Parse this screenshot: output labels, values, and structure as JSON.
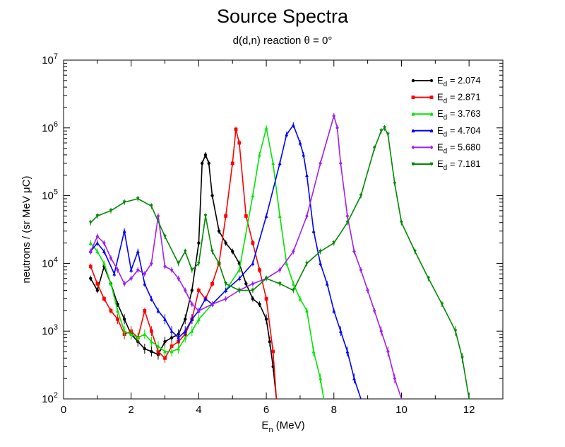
{
  "chart_data": {
    "type": "line",
    "title": "Source Spectra",
    "subtitle": "d(d,n) reaction θ = 0°",
    "xlabel": "E_n (MeV)",
    "ylabel": "neutrons / (sr MeV μC)",
    "xlim": [
      0,
      13
    ],
    "ylim": [
      100,
      10000000
    ],
    "yscale": "log",
    "x_ticks": [
      "0",
      "2",
      "4",
      "6",
      "8",
      "10",
      "12"
    ],
    "y_ticks": [
      "10^2",
      "10^3",
      "10^4",
      "10^5",
      "10^6",
      "10^7"
    ],
    "grid": false,
    "legend_position": "top-right",
    "series": [
      {
        "name": "E_d = 2.074",
        "color": "#000000",
        "marker": "circle",
        "x": [
          0.8,
          1.0,
          1.2,
          1.4,
          1.6,
          1.8,
          2.0,
          2.2,
          2.4,
          2.6,
          2.8,
          3.0,
          3.2,
          3.4,
          3.6,
          3.8,
          4.0,
          4.1,
          4.2,
          4.3,
          4.4,
          4.6,
          4.8,
          5.0,
          5.2,
          5.4,
          5.6,
          5.8,
          6.0,
          6.1,
          6.2,
          6.3
        ],
        "y": [
          6000,
          4000,
          9000,
          5000,
          2500,
          1500,
          900,
          700,
          550,
          500,
          450,
          700,
          800,
          900,
          1500,
          4000,
          20000,
          300000,
          400000,
          300000,
          100000,
          30000,
          20000,
          15000,
          10000,
          5000,
          3000,
          2500,
          1500,
          700,
          300,
          100
        ]
      },
      {
        "name": "E_d = 2.871",
        "color": "#ff0000",
        "marker": "square",
        "x": [
          0.8,
          1.0,
          1.2,
          1.4,
          1.6,
          1.8,
          2.0,
          2.2,
          2.4,
          2.6,
          2.8,
          3.0,
          3.2,
          3.4,
          3.6,
          3.8,
          4.0,
          4.2,
          4.4,
          4.6,
          4.8,
          5.0,
          5.1,
          5.2,
          5.4,
          5.6,
          5.8,
          6.0,
          6.2,
          6.3
        ],
        "y": [
          9000,
          5000,
          3000,
          2000,
          1500,
          900,
          1000,
          800,
          2000,
          1000,
          500,
          400,
          600,
          700,
          900,
          1500,
          4000,
          3000,
          5000,
          10000,
          50000,
          300000,
          950000,
          600000,
          50000,
          20000,
          8000,
          3000,
          500,
          100
        ]
      },
      {
        "name": "E_d = 3.763",
        "color": "#00e600",
        "marker": "triangle-up",
        "x": [
          0.8,
          1.0,
          1.2,
          1.4,
          1.6,
          1.8,
          2.0,
          2.2,
          2.4,
          2.6,
          2.8,
          3.0,
          3.2,
          3.4,
          3.6,
          3.8,
          4.0,
          4.4,
          4.8,
          5.2,
          5.6,
          5.8,
          6.0,
          6.2,
          6.4,
          6.6,
          6.8,
          7.0,
          7.2,
          7.4,
          7.6,
          7.7
        ],
        "y": [
          20000,
          15000,
          10000,
          5000,
          2000,
          1000,
          900,
          800,
          900,
          700,
          600,
          500,
          500,
          550,
          800,
          1000,
          1500,
          2500,
          4000,
          8000,
          100000,
          400000,
          1000000,
          300000,
          50000,
          10000,
          5000,
          3000,
          2000,
          500,
          200,
          100
        ]
      },
      {
        "name": "E_d = 4.704",
        "color": "#0000ff",
        "marker": "triangle-up",
        "x": [
          0.8,
          1.0,
          1.2,
          1.5,
          1.8,
          2.0,
          2.2,
          2.4,
          2.6,
          2.8,
          3.0,
          3.2,
          3.4,
          3.6,
          3.8,
          4.0,
          4.2,
          4.4,
          4.8,
          5.2,
          5.6,
          6.0,
          6.4,
          6.6,
          6.8,
          7.0,
          7.1,
          7.2,
          7.4,
          7.6,
          7.8,
          8.0,
          8.2,
          8.4,
          8.6,
          8.8
        ],
        "y": [
          15000,
          20000,
          15000,
          7000,
          30000,
          8000,
          15000,
          5000,
          3000,
          2000,
          1500,
          1000,
          800,
          1000,
          1500,
          2000,
          3000,
          2500,
          4000,
          6000,
          10000,
          50000,
          300000,
          800000,
          1100000,
          600000,
          400000,
          200000,
          30000,
          10000,
          5000,
          2000,
          1000,
          500,
          200,
          100
        ]
      },
      {
        "name": "E_d = 5.680",
        "color": "#a020f0",
        "marker": "diamond",
        "x": [
          0.8,
          1.0,
          1.2,
          1.4,
          1.6,
          1.8,
          2.0,
          2.2,
          2.4,
          2.6,
          2.8,
          3.0,
          3.2,
          3.4,
          3.6,
          3.8,
          4.0,
          4.4,
          4.8,
          5.2,
          5.6,
          6.0,
          6.4,
          6.8,
          7.2,
          7.6,
          8.0,
          8.1,
          8.2,
          8.4,
          8.6,
          8.8,
          9.0,
          9.2,
          9.4,
          9.6,
          9.8,
          10.0
        ],
        "y": [
          15000,
          25000,
          20000,
          12000,
          8000,
          5000,
          6000,
          8000,
          7000,
          10000,
          50000,
          9000,
          8000,
          6000,
          4000,
          2500,
          2000,
          2500,
          3000,
          4000,
          5000,
          6000,
          8000,
          15000,
          50000,
          300000,
          1500000,
          1000000,
          300000,
          50000,
          15000,
          8000,
          4000,
          2000,
          1000,
          500,
          200,
          100
        ]
      },
      {
        "name": "E_d = 7.181",
        "color": "#008800",
        "marker": "triangle-down",
        "x": [
          0.8,
          1.0,
          1.4,
          1.8,
          2.2,
          2.6,
          3.0,
          3.4,
          3.6,
          3.8,
          4.0,
          4.2,
          4.4,
          4.6,
          4.8,
          5.2,
          5.6,
          6.0,
          6.4,
          6.8,
          7.2,
          7.6,
          8.0,
          8.4,
          8.8,
          9.2,
          9.4,
          9.5,
          9.6,
          9.8,
          10.0,
          10.4,
          10.8,
          11.2,
          11.6,
          11.8,
          12.0
        ],
        "y": [
          40000,
          50000,
          60000,
          80000,
          90000,
          70000,
          25000,
          10000,
          15000,
          8000,
          10000,
          50000,
          15000,
          10000,
          5000,
          4000,
          4000,
          6000,
          5000,
          4000,
          10000,
          15000,
          20000,
          40000,
          100000,
          500000,
          900000,
          1000000,
          800000,
          150000,
          40000,
          15000,
          6000,
          2500,
          1000,
          400,
          100
        ]
      }
    ]
  }
}
